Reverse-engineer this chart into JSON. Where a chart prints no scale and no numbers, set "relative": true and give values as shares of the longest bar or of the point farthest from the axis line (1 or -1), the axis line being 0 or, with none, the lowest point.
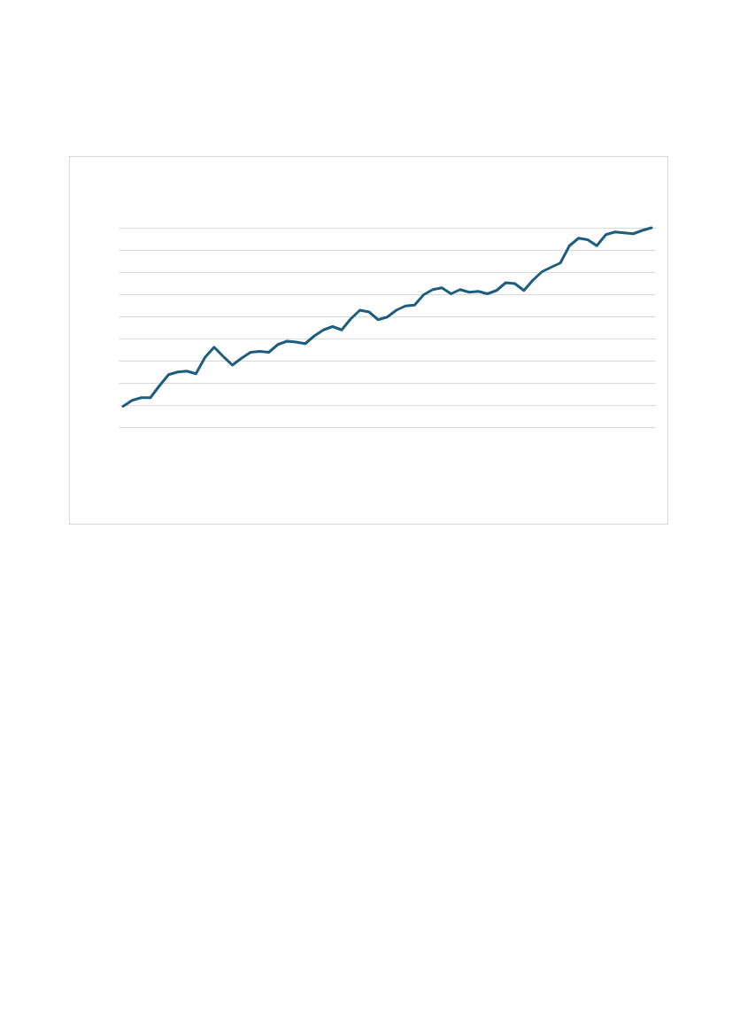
{
  "chart_data": {
    "type": "line",
    "relative": true,
    "grid": "y",
    "legend": false,
    "marker": "none",
    "line_style": "solid",
    "categories": [
      null,
      null,
      null,
      null,
      null,
      null,
      null,
      null,
      null,
      null,
      null,
      null,
      null,
      null,
      null,
      null,
      null,
      null,
      null,
      null,
      null,
      null,
      null,
      null,
      null,
      null,
      null,
      null,
      null,
      null,
      null,
      null,
      null,
      null,
      null,
      null,
      null,
      null,
      null,
      null,
      null,
      null,
      null,
      null,
      null,
      null,
      null,
      null,
      null,
      null,
      null,
      null,
      null,
      null,
      null,
      null,
      null,
      null,
      null
    ],
    "series": [
      {
        "color": "#1d5e7e",
        "values": [
          0.194,
          0.221,
          0.233,
          0.233,
          0.287,
          0.337,
          0.349,
          0.353,
          0.341,
          0.415,
          0.461,
          0.419,
          0.38,
          0.411,
          0.438,
          0.442,
          0.438,
          0.473,
          0.488,
          0.484,
          0.477,
          0.512,
          0.539,
          0.554,
          0.539,
          0.589,
          0.628,
          0.62,
          0.585,
          0.597,
          0.628,
          0.647,
          0.651,
          0.698,
          0.721,
          0.729,
          0.702,
          0.721,
          0.709,
          0.713,
          0.702,
          0.717,
          0.752,
          0.748,
          0.717,
          0.764,
          0.802,
          0.822,
          0.841,
          0.919,
          0.953,
          0.946,
          0.919,
          0.969,
          0.981,
          0.977,
          0.973,
          0.988,
          1
        ]
      }
    ]
  }
}
